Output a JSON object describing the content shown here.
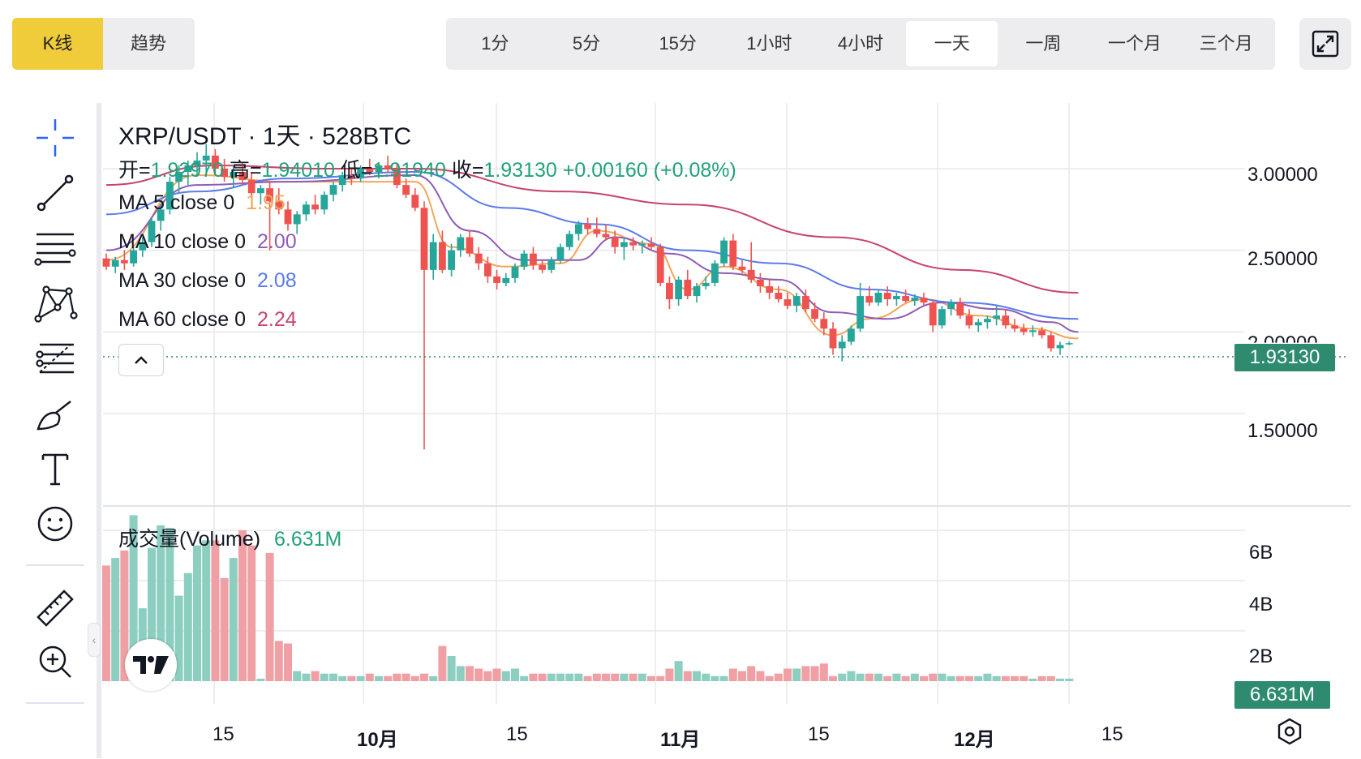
{
  "top_bar": {
    "chart_types": [
      {
        "label": "K线",
        "active": true
      },
      {
        "label": "趋势",
        "active": false
      }
    ],
    "intervals": [
      {
        "label": "1分",
        "active": false
      },
      {
        "label": "5分",
        "active": false
      },
      {
        "label": "15分",
        "active": false
      },
      {
        "label": "1小时",
        "active": false
      },
      {
        "label": "4小时",
        "active": false
      },
      {
        "label": "一天",
        "active": true
      },
      {
        "label": "一周",
        "active": false
      },
      {
        "label": "一个月",
        "active": false
      },
      {
        "label": "三个月",
        "active": false
      }
    ],
    "fullscreen_icon": "expand-icon"
  },
  "toolbar": {
    "tools": [
      "crosshair-icon",
      "trend-line-icon",
      "horizontal-lines-icon",
      "pattern-icon",
      "fib-levels-icon",
      "brush-icon",
      "text-icon",
      "emoji-icon",
      "ruler-icon",
      "zoom-in-icon"
    ]
  },
  "legend": {
    "title": "XRP/USDT · 1天 · 528BTC",
    "ohlc": [
      {
        "key": "开=",
        "value": "1.92970"
      },
      {
        "key": "高=",
        "value": "1.94010"
      },
      {
        "key": "低=",
        "value": "1.91940"
      },
      {
        "key": "收=",
        "value": "1.93130"
      }
    ],
    "change": "+0.00160 (+0.08%)",
    "ma": [
      {
        "label": "MA 5 close 0",
        "value": "1.95",
        "color": "#f2a65a"
      },
      {
        "label": "MA 10 close 0",
        "value": "2.00",
        "color": "#8e5cb5"
      },
      {
        "label": "MA 30 close 0",
        "value": "2.08",
        "color": "#5b7be8"
      },
      {
        "label": "MA 60 close 0",
        "value": "2.24",
        "color": "#c7456a"
      }
    ],
    "collapse_icon": "chevron-up-icon"
  },
  "volume_legend": {
    "label": "成交量(Volume)",
    "value": "6.631M"
  },
  "colors": {
    "up": "#26a69a",
    "down": "#ef5350",
    "up_vol": "#8ccfc1",
    "down_vol": "#f0a0a4",
    "grid": "#e8e8ec",
    "last_price": "#2e8b70"
  },
  "price_axis": {
    "ticks": [
      "3.00000",
      "2.50000",
      "2.00000",
      "1.50000"
    ],
    "last_price": "1.93130"
  },
  "volume_axis": {
    "ticks": [
      "6B",
      "4B",
      "2B"
    ],
    "last_volume": "6.631M"
  },
  "time_axis": {
    "labels": [
      "15",
      "10月",
      "15",
      "11月",
      "15",
      "12月",
      "15"
    ]
  },
  "chart_data": {
    "type": "candlestick",
    "symbol": "XRP/USDT",
    "interval": "1天",
    "ylim": [
      1.2,
      3.3
    ],
    "candles": [
      [
        2.45,
        2.48,
        2.38,
        2.4
      ],
      [
        2.4,
        2.46,
        2.36,
        2.44
      ],
      [
        2.44,
        2.5,
        2.38,
        2.42
      ],
      [
        2.42,
        2.52,
        2.4,
        2.5
      ],
      [
        2.5,
        2.58,
        2.46,
        2.55
      ],
      [
        2.55,
        2.7,
        2.52,
        2.68
      ],
      [
        2.68,
        2.78,
        2.62,
        2.75
      ],
      [
        2.75,
        2.95,
        2.72,
        2.92
      ],
      [
        2.92,
        3.02,
        2.85,
        2.98
      ],
      [
        2.98,
        3.05,
        2.9,
        3.02
      ],
      [
        3.02,
        3.1,
        2.95,
        3.05
      ],
      [
        3.05,
        3.15,
        2.98,
        3.08
      ],
      [
        3.08,
        3.12,
        2.96,
        3.0
      ],
      [
        3.0,
        3.06,
        2.92,
        2.95
      ],
      [
        2.95,
        3.02,
        2.88,
        2.98
      ],
      [
        2.98,
        3.04,
        2.9,
        2.93
      ],
      [
        2.93,
        2.98,
        2.82,
        2.85
      ],
      [
        2.85,
        2.9,
        2.78,
        2.88
      ],
      [
        2.88,
        2.92,
        2.5,
        2.8
      ],
      [
        2.8,
        2.88,
        2.72,
        2.75
      ],
      [
        2.75,
        2.8,
        2.62,
        2.66
      ],
      [
        2.66,
        2.74,
        2.6,
        2.72
      ],
      [
        2.72,
        2.8,
        2.68,
        2.78
      ],
      [
        2.78,
        2.84,
        2.72,
        2.75
      ],
      [
        2.75,
        2.86,
        2.72,
        2.84
      ],
      [
        2.84,
        2.92,
        2.8,
        2.9
      ],
      [
        2.9,
        2.98,
        2.86,
        2.96
      ],
      [
        2.96,
        3.0,
        2.9,
        2.94
      ],
      [
        2.94,
        3.02,
        2.92,
        3.0
      ],
      [
        3.0,
        3.06,
        2.96,
        2.98
      ],
      [
        2.98,
        3.04,
        2.94,
        3.02
      ],
      [
        3.02,
        3.08,
        2.98,
        3.0
      ],
      [
        3.0,
        3.03,
        2.88,
        2.9
      ],
      [
        2.9,
        2.94,
        2.82,
        2.84
      ],
      [
        2.84,
        2.88,
        2.74,
        2.76
      ],
      [
        2.76,
        2.8,
        1.28,
        2.38
      ],
      [
        2.38,
        2.6,
        2.32,
        2.55
      ],
      [
        2.55,
        2.62,
        2.36,
        2.38
      ],
      [
        2.38,
        2.54,
        2.34,
        2.5
      ],
      [
        2.5,
        2.6,
        2.46,
        2.58
      ],
      [
        2.58,
        2.62,
        2.46,
        2.48
      ],
      [
        2.48,
        2.52,
        2.38,
        2.42
      ],
      [
        2.42,
        2.46,
        2.3,
        2.34
      ],
      [
        2.34,
        2.38,
        2.26,
        2.3
      ],
      [
        2.3,
        2.36,
        2.28,
        2.33
      ],
      [
        2.33,
        2.42,
        2.3,
        2.4
      ],
      [
        2.4,
        2.5,
        2.38,
        2.48
      ],
      [
        2.48,
        2.52,
        2.38,
        2.41
      ],
      [
        2.41,
        2.44,
        2.36,
        2.38
      ],
      [
        2.38,
        2.46,
        2.36,
        2.44
      ],
      [
        2.44,
        2.54,
        2.42,
        2.52
      ],
      [
        2.52,
        2.62,
        2.5,
        2.6
      ],
      [
        2.6,
        2.68,
        2.56,
        2.66
      ],
      [
        2.66,
        2.7,
        2.6,
        2.63
      ],
      [
        2.63,
        2.7,
        2.58,
        2.6
      ],
      [
        2.6,
        2.66,
        2.56,
        2.58
      ],
      [
        2.58,
        2.62,
        2.48,
        2.52
      ],
      [
        2.52,
        2.58,
        2.44,
        2.55
      ],
      [
        2.55,
        2.58,
        2.5,
        2.53
      ],
      [
        2.53,
        2.56,
        2.48,
        2.54
      ],
      [
        2.54,
        2.58,
        2.5,
        2.52
      ],
      [
        2.52,
        2.54,
        2.28,
        2.3
      ],
      [
        2.3,
        2.34,
        2.14,
        2.2
      ],
      [
        2.2,
        2.34,
        2.16,
        2.32
      ],
      [
        2.32,
        2.38,
        2.2,
        2.22
      ],
      [
        2.22,
        2.3,
        2.18,
        2.28
      ],
      [
        2.28,
        2.34,
        2.26,
        2.3
      ],
      [
        2.3,
        2.44,
        2.28,
        2.42
      ],
      [
        2.42,
        2.58,
        2.4,
        2.56
      ],
      [
        2.56,
        2.6,
        2.38,
        2.4
      ],
      [
        2.4,
        2.44,
        2.36,
        2.38
      ],
      [
        2.38,
        2.55,
        2.3,
        2.32
      ],
      [
        2.32,
        2.36,
        2.24,
        2.28
      ],
      [
        2.28,
        2.32,
        2.2,
        2.24
      ],
      [
        2.24,
        2.28,
        2.18,
        2.2
      ],
      [
        2.2,
        2.24,
        2.14,
        2.16
      ],
      [
        2.16,
        2.24,
        2.12,
        2.22
      ],
      [
        2.22,
        2.26,
        2.12,
        2.14
      ],
      [
        2.14,
        2.18,
        2.06,
        2.08
      ],
      [
        2.08,
        2.12,
        1.98,
        2.02
      ],
      [
        2.02,
        2.06,
        1.86,
        1.9
      ],
      [
        1.9,
        1.98,
        1.82,
        1.94
      ],
      [
        1.94,
        2.04,
        1.92,
        2.02
      ],
      [
        2.02,
        2.3,
        2.0,
        2.22
      ],
      [
        2.22,
        2.28,
        2.16,
        2.18
      ],
      [
        2.18,
        2.26,
        2.16,
        2.24
      ],
      [
        2.24,
        2.28,
        2.16,
        2.2
      ],
      [
        2.2,
        2.24,
        2.16,
        2.22
      ],
      [
        2.22,
        2.26,
        2.18,
        2.19
      ],
      [
        2.19,
        2.23,
        2.16,
        2.21
      ],
      [
        2.21,
        2.24,
        2.16,
        2.18
      ],
      [
        2.18,
        2.2,
        2.0,
        2.04
      ],
      [
        2.04,
        2.16,
        2.02,
        2.14
      ],
      [
        2.14,
        2.2,
        2.1,
        2.18
      ],
      [
        2.18,
        2.21,
        2.08,
        2.1
      ],
      [
        2.1,
        2.14,
        2.02,
        2.04
      ],
      [
        2.04,
        2.08,
        2.0,
        2.06
      ],
      [
        2.06,
        2.1,
        2.02,
        2.08
      ],
      [
        2.08,
        2.16,
        2.04,
        2.1
      ],
      [
        2.1,
        2.14,
        2.02,
        2.04
      ],
      [
        2.04,
        2.08,
        2.0,
        2.02
      ],
      [
        2.02,
        2.05,
        1.98,
        2.0
      ],
      [
        2.0,
        2.04,
        1.97,
        2.01
      ],
      [
        2.01,
        2.03,
        1.96,
        1.98
      ],
      [
        1.98,
        2.0,
        1.88,
        1.9
      ],
      [
        1.9,
        1.94,
        1.86,
        1.92
      ],
      [
        1.9297,
        1.9401,
        1.9194,
        1.9313
      ]
    ],
    "volumes": [
      4.6,
      4.9,
      5.2,
      6.6,
      2.9,
      5.3,
      6.2,
      6.1,
      3.4,
      4.3,
      5.4,
      5.6,
      5.6,
      4.1,
      4.9,
      6.0,
      5.4,
      0.1,
      5.1,
      1.6,
      1.5,
      0.4,
      0.3,
      0.4,
      0.3,
      0.3,
      0.2,
      0.2,
      0.2,
      0.3,
      0.2,
      0.2,
      0.3,
      0.3,
      0.2,
      0.3,
      0.2,
      1.4,
      1.0,
      0.6,
      0.6,
      0.5,
      0.4,
      0.5,
      0.4,
      0.5,
      0.2,
      0.3,
      0.3,
      0.3,
      0.3,
      0.3,
      0.3,
      0.2,
      0.3,
      0.3,
      0.3,
      0.3,
      0.3,
      0.3,
      0.2,
      0.2,
      0.5,
      0.8,
      0.4,
      0.4,
      0.3,
      0.2,
      0.2,
      0.5,
      0.4,
      0.6,
      0.4,
      0.2,
      0.3,
      0.5,
      0.5,
      0.6,
      0.6,
      0.7,
      0.2,
      0.3,
      0.4,
      0.3,
      0.3,
      0.3,
      0.2,
      0.3,
      0.2,
      0.3,
      0.2,
      0.3,
      0.3,
      0.2,
      0.2,
      0.2,
      0.2,
      0.3,
      0.2,
      0.2,
      0.2,
      0.2,
      0.1,
      0.2,
      0.2,
      0.1,
      0.1
    ],
    "ma": {
      "ma5": {
        "start": 2.45,
        "points": [
          [
            0,
            2.44
          ],
          [
            10,
            2.96
          ],
          [
            20,
            2.92
          ],
          [
            34,
            2.92
          ],
          [
            38,
            2.52
          ],
          [
            44,
            2.4
          ],
          [
            50,
            2.42
          ],
          [
            54,
            2.62
          ],
          [
            60,
            2.54
          ],
          [
            64,
            2.26
          ],
          [
            68,
            2.4
          ],
          [
            74,
            2.26
          ],
          [
            80,
            1.98
          ],
          [
            84,
            2.08
          ],
          [
            90,
            2.2
          ],
          [
            96,
            2.1
          ],
          [
            102,
            2.02
          ],
          [
            107,
            1.96
          ]
        ]
      },
      "ma10": {
        "points": [
          [
            0,
            2.5
          ],
          [
            10,
            2.9
          ],
          [
            20,
            2.92
          ],
          [
            34,
            2.96
          ],
          [
            40,
            2.62
          ],
          [
            46,
            2.44
          ],
          [
            52,
            2.44
          ],
          [
            56,
            2.58
          ],
          [
            62,
            2.48
          ],
          [
            68,
            2.36
          ],
          [
            74,
            2.32
          ],
          [
            80,
            2.12
          ],
          [
            86,
            2.08
          ],
          [
            92,
            2.18
          ],
          [
            98,
            2.14
          ],
          [
            104,
            2.06
          ],
          [
            107,
            2.0
          ]
        ]
      },
      "ma30": {
        "points": [
          [
            0,
            2.72
          ],
          [
            10,
            2.86
          ],
          [
            20,
            2.94
          ],
          [
            34,
            2.98
          ],
          [
            44,
            2.76
          ],
          [
            54,
            2.66
          ],
          [
            64,
            2.5
          ],
          [
            74,
            2.42
          ],
          [
            84,
            2.26
          ],
          [
            94,
            2.18
          ],
          [
            107,
            2.08
          ]
        ]
      },
      "ma60": {
        "points": [
          [
            0,
            2.9
          ],
          [
            12,
            3.02
          ],
          [
            24,
            3.0
          ],
          [
            34,
            3.0
          ],
          [
            50,
            2.86
          ],
          [
            64,
            2.78
          ],
          [
            80,
            2.58
          ],
          [
            94,
            2.38
          ],
          [
            107,
            2.24
          ]
        ]
      }
    }
  }
}
